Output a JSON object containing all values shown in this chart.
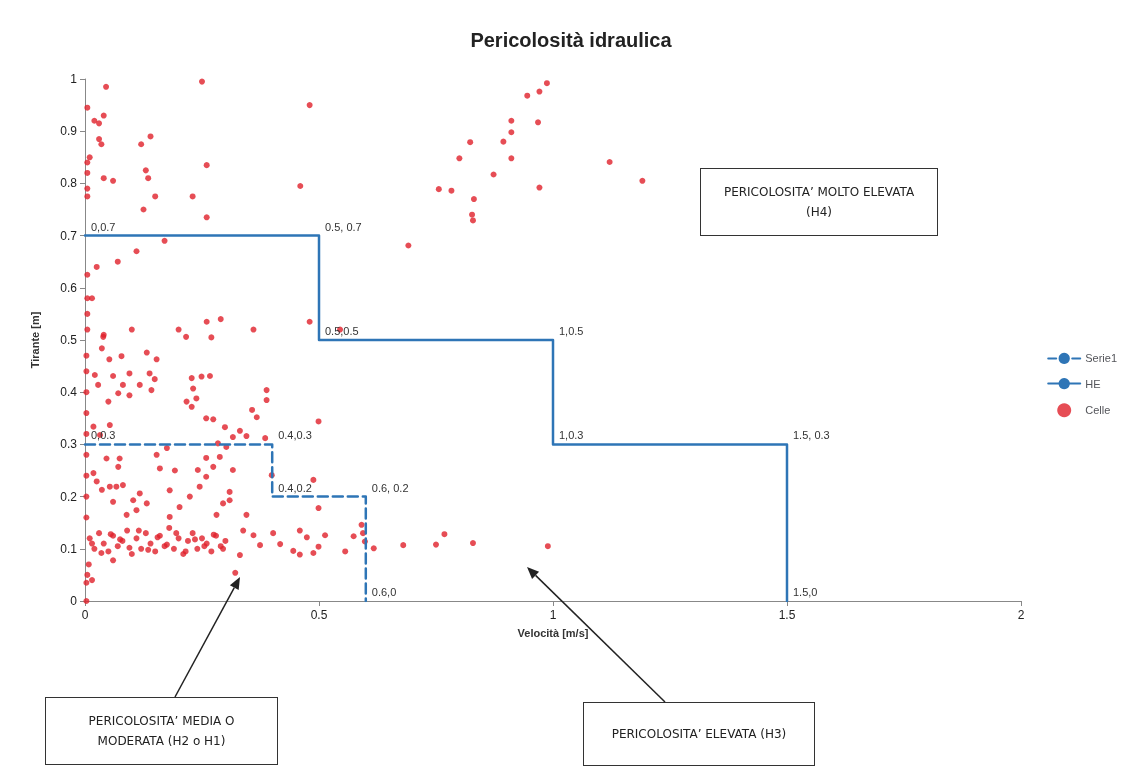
{
  "chart_data": {
    "type": "scatter",
    "title": "Pericolosità idraulica",
    "xlabel": "Velocità [m/s]",
    "ylabel": "Tirante [m]",
    "xlim": [
      0,
      2
    ],
    "xticks": [
      0,
      0.5,
      1,
      1.5,
      2
    ],
    "ylim": [
      0,
      1
    ],
    "yticks": [
      0,
      0.1,
      0.2,
      0.3,
      0.4,
      0.5,
      0.6,
      0.7,
      0.8,
      0.9,
      1
    ],
    "grid": false,
    "legend": "right",
    "annotations": [
      "PERICOLOSITA’ MOLTO ELEVATA (H4)",
      "PERICOLOSITA’ MEDIA O MODERATA (H2 o H1)",
      "PERICOLOSITA’ ELEVATA (H3)"
    ],
    "series": [
      {
        "name": "Serie1",
        "type": "line",
        "line_style": "dashed",
        "marker": "none",
        "color": "#2e75b6",
        "x": [
          0,
          0.4,
          0.4,
          0.6,
          0.6
        ],
        "values": [
          0.3,
          0.3,
          0.2,
          0.2,
          0
        ],
        "value_labels": [
          "0,0.3",
          "0.4,0.3",
          "0.4,0.2",
          "0.6, 0.2",
          "0.6,0"
        ]
      },
      {
        "name": "HE",
        "type": "line",
        "line_style": "solid",
        "marker": "none",
        "color": "#2e75b6",
        "x": [
          0,
          0.5,
          0.5,
          1,
          1,
          1.5,
          1.5
        ],
        "values": [
          0.7,
          0.7,
          0.5,
          0.5,
          0.3,
          0.3,
          0
        ],
        "value_labels": [
          "0,0.7",
          "0.5, 0.7",
          "0.5,0.5",
          "1,0.5",
          "1,0.3",
          "1.5, 0.3",
          "1.5,0"
        ]
      },
      {
        "name": "Celle",
        "marker": "circle",
        "color": "#e0202a",
        "x": [
          0.045,
          0.005,
          0.04,
          0.02,
          0.03,
          0.03,
          0.035,
          0.01,
          0.005,
          0.005,
          0.04,
          0.06,
          0.005,
          0.005,
          0.12,
          0.14,
          0.13,
          0.135,
          0.15,
          0.125,
          0.25,
          0.26,
          0.23,
          0.26,
          0.48,
          0.46,
          0.17,
          0.11,
          0.07,
          0.025,
          0.005,
          0.015,
          0.005,
          0.005,
          0.005,
          0.04,
          0.1,
          0.2,
          0.26,
          0.29,
          0.36,
          0.48,
          0.545,
          0.27,
          0.987,
          0.971,
          0.945,
          0.911,
          0.968,
          0.911,
          0.823,
          0.894,
          0.8,
          0.911,
          1.121,
          0.873,
          1.191,
          0.756,
          0.783,
          0.971,
          0.831,
          0.827,
          0.829,
          0.691,
          0.68,
          0.75,
          0.768,
          0.829,
          0.989,
          0.039,
          0.036,
          0.052,
          0.078,
          0.132,
          0.153,
          0.216,
          0.021,
          0.028,
          0.06,
          0.095,
          0.081,
          0.071,
          0.05,
          0.095,
          0.117,
          0.138,
          0.149,
          0.142,
          0.228,
          0.249,
          0.267,
          0.231,
          0.238,
          0.217,
          0.228,
          0.259,
          0.274,
          0.388,
          0.388,
          0.357,
          0.367,
          0.299,
          0.331,
          0.345,
          0.499,
          0.488,
          0.499,
          0.399,
          0.385,
          0.018,
          0.053,
          0.032,
          0.046,
          0.071,
          0.074,
          0.018,
          0.025,
          0.036,
          0.053,
          0.067,
          0.081,
          0.117,
          0.103,
          0.06,
          0.089,
          0.11,
          0.132,
          0.16,
          0.153,
          0.175,
          0.192,
          0.181,
          0.181,
          0.202,
          0.224,
          0.245,
          0.259,
          0.274,
          0.288,
          0.302,
          0.316,
          0.241,
          0.259,
          0.284,
          0.295,
          0.281,
          0.309,
          0.316,
          0.309,
          0.345,
          0.003,
          0.003,
          0.003,
          0.003,
          0.003,
          0.003,
          0.003,
          0.003,
          0.003,
          0.008,
          0.005,
          0.003,
          0.003,
          0.015,
          0.321,
          0.06,
          0.591,
          0.594,
          0.598,
          0.617,
          0.556,
          0.574,
          0.513,
          0.499,
          0.488,
          0.459,
          0.445,
          0.459,
          0.474,
          0.417,
          0.402,
          0.374,
          0.36,
          0.331,
          0.338,
          0.01,
          0.02,
          0.03,
          0.04,
          0.05,
          0.06,
          0.07,
          0.08,
          0.09,
          0.1,
          0.11,
          0.12,
          0.13,
          0.14,
          0.15,
          0.16,
          0.17,
          0.18,
          0.19,
          0.2,
          0.21,
          0.22,
          0.23,
          0.24,
          0.25,
          0.26,
          0.27,
          0.28,
          0.29,
          0.3,
          0.015,
          0.035,
          0.055,
          0.075,
          0.095,
          0.115,
          0.135,
          0.155,
          0.175,
          0.195,
          0.215,
          0.235,
          0.255,
          0.275,
          0.295
        ],
        "values": [
          0.985,
          0.945,
          0.93,
          0.92,
          0.915,
          0.885,
          0.875,
          0.85,
          0.84,
          0.82,
          0.81,
          0.805,
          0.79,
          0.775,
          0.875,
          0.89,
          0.825,
          0.81,
          0.775,
          0.75,
          0.995,
          0.835,
          0.775,
          0.735,
          0.95,
          0.795,
          0.69,
          0.67,
          0.65,
          0.64,
          0.625,
          0.58,
          0.58,
          0.55,
          0.52,
          0.51,
          0.52,
          0.52,
          0.535,
          0.54,
          0.52,
          0.535,
          0.52,
          0.505,
          0.992,
          0.976,
          0.968,
          0.92,
          0.917,
          0.898,
          0.879,
          0.88,
          0.848,
          0.848,
          0.841,
          0.817,
          0.805,
          0.789,
          0.786,
          0.792,
          0.77,
          0.74,
          0.729,
          0.681,
          0.107,
          0.108,
          0.128,
          0.111,
          0.105,
          0.506,
          0.484,
          0.463,
          0.469,
          0.476,
          0.463,
          0.506,
          0.433,
          0.414,
          0.431,
          0.436,
          0.414,
          0.398,
          0.382,
          0.394,
          0.414,
          0.436,
          0.425,
          0.404,
          0.427,
          0.43,
          0.431,
          0.407,
          0.388,
          0.382,
          0.372,
          0.35,
          0.348,
          0.404,
          0.385,
          0.366,
          0.352,
          0.333,
          0.326,
          0.316,
          0.344,
          0.232,
          0.178,
          0.241,
          0.312,
          0.334,
          0.337,
          0.318,
          0.273,
          0.257,
          0.273,
          0.245,
          0.229,
          0.213,
          0.219,
          0.219,
          0.222,
          0.206,
          0.193,
          0.19,
          0.165,
          0.174,
          0.187,
          0.254,
          0.28,
          0.293,
          0.25,
          0.212,
          0.161,
          0.18,
          0.2,
          0.219,
          0.238,
          0.257,
          0.276,
          0.295,
          0.314,
          0.251,
          0.274,
          0.302,
          0.187,
          0.165,
          0.193,
          0.251,
          0.209,
          0.165,
          0.47,
          0.44,
          0.4,
          0.36,
          0.32,
          0.28,
          0.24,
          0.2,
          0.16,
          0.07,
          0.05,
          0.035,
          0,
          0.04,
          0.054,
          0.078,
          0.146,
          0.13,
          0.114,
          0.101,
          0.095,
          0.124,
          0.126,
          0.104,
          0.092,
          0.089,
          0.096,
          0.135,
          0.122,
          0.109,
          0.13,
          0.107,
          0.126,
          0.088,
          0.135,
          0.12,
          0.1,
          0.13,
          0.11,
          0.095,
          0.125,
          0.105,
          0.115,
          0.135,
          0.09,
          0.12,
          0.1,
          0.13,
          0.11,
          0.095,
          0.125,
          0.105,
          0.14,
          0.1,
          0.12,
          0.09,
          0.115,
          0.13,
          0.1,
          0.12,
          0.11,
          0.095,
          0.125,
          0.105,
          0.115,
          0.11,
          0.092,
          0.128,
          0.118,
          0.102,
          0.135,
          0.098,
          0.122,
          0.108,
          0.13,
          0.095,
          0.118,
          0.105,
          0.127,
          0.1
        ]
      }
    ]
  }
}
